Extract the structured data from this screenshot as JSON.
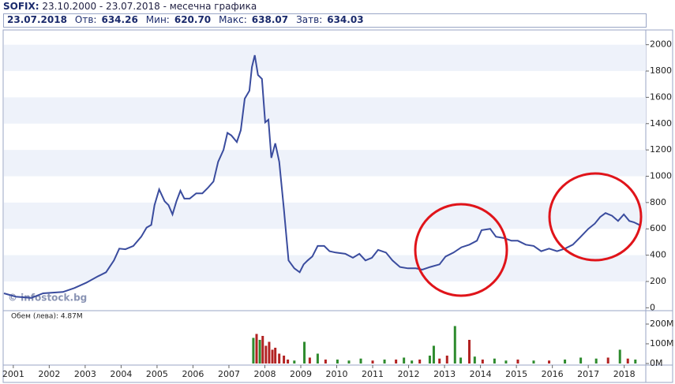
{
  "header": {
    "title": "SOFIX:",
    "subtitle": "23.10.2000 - 23.07.2018 - месечна графика"
  },
  "info": {
    "date": "23.07.2018",
    "stats": [
      {
        "label": "Отв:",
        "value": "634.26"
      },
      {
        "label": "Мин:",
        "value": "620.70"
      },
      {
        "label": "Макс:",
        "value": "638.07"
      },
      {
        "label": "Затв:",
        "value": "634.03"
      }
    ]
  },
  "watermark": "© infostock.bg",
  "chart_data": [
    {
      "type": "line",
      "color": "#3a4c9e",
      "grid": true,
      "xlim": [
        2000.74,
        2018.6
      ],
      "ylim": [
        -10,
        2100
      ],
      "yticks": [
        0,
        200,
        400,
        600,
        800,
        1000,
        1200,
        1400,
        1600,
        1800,
        2000
      ],
      "xticks": [
        2001,
        2002,
        2003,
        2004,
        2005,
        2006,
        2007,
        2008,
        2009,
        2010,
        2011,
        2012,
        2013,
        2014,
        2015,
        2016,
        2017,
        2018
      ],
      "x": [
        2000.74,
        2001.07,
        2001.5,
        2001.83,
        2002.38,
        2002.7,
        2003.03,
        2003.36,
        2003.58,
        2003.8,
        2003.95,
        2004.12,
        2004.34,
        2004.56,
        2004.71,
        2004.84,
        2004.93,
        2005.06,
        2005.21,
        2005.32,
        2005.43,
        2005.54,
        2005.65,
        2005.76,
        2005.91,
        2006.09,
        2006.26,
        2006.41,
        2006.57,
        2006.7,
        2006.85,
        2006.96,
        2007.07,
        2007.22,
        2007.33,
        2007.44,
        2007.57,
        2007.64,
        2007.72,
        2007.81,
        2007.92,
        2008.01,
        2008.1,
        2008.18,
        2008.29,
        2008.4,
        2008.53,
        2008.66,
        2008.82,
        2008.97,
        2009.08,
        2009.19,
        2009.32,
        2009.47,
        2009.65,
        2009.8,
        2009.97,
        2010.24,
        2010.45,
        2010.63,
        2010.8,
        2010.98,
        2011.15,
        2011.37,
        2011.55,
        2011.76,
        2011.98,
        2012.2,
        2012.38,
        2012.6,
        2012.86,
        2013.03,
        2013.25,
        2013.47,
        2013.69,
        2013.9,
        2014.03,
        2014.27,
        2014.43,
        2014.65,
        2014.86,
        2015.04,
        2015.26,
        2015.48,
        2015.69,
        2015.91,
        2016.13,
        2016.35,
        2016.57,
        2016.79,
        2017.0,
        2017.18,
        2017.33,
        2017.48,
        2017.66,
        2017.83,
        2017.99,
        2018.14,
        2018.27,
        2018.42
      ],
      "values": [
        110,
        85,
        75,
        110,
        120,
        150,
        190,
        240,
        270,
        360,
        450,
        445,
        470,
        540,
        610,
        630,
        780,
        900,
        810,
        780,
        710,
        810,
        890,
        830,
        830,
        870,
        870,
        910,
        960,
        1110,
        1200,
        1330,
        1310,
        1260,
        1350,
        1590,
        1650,
        1830,
        1920,
        1770,
        1740,
        1410,
        1430,
        1140,
        1250,
        1110,
        750,
        360,
        300,
        270,
        330,
        360,
        390,
        470,
        470,
        430,
        420,
        410,
        380,
        410,
        360,
        380,
        440,
        420,
        360,
        310,
        300,
        300,
        290,
        310,
        330,
        390,
        420,
        460,
        480,
        510,
        590,
        600,
        540,
        530,
        510,
        510,
        480,
        470,
        430,
        450,
        430,
        450,
        480,
        540,
        600,
        640,
        690,
        720,
        700,
        660,
        710,
        660,
        650,
        630
      ]
    },
    {
      "type": "bar",
      "title": "Обем (лева): 4.87M",
      "xlim": [
        2000.74,
        2018.6
      ],
      "ylim": [
        -8,
        264
      ],
      "yticks": [
        {
          "value": 0,
          "label": "0M"
        },
        {
          "value": 100,
          "label": "100M"
        },
        {
          "value": 200,
          "label": "200M"
        }
      ],
      "x": [
        2007.68,
        2007.77,
        2007.86,
        2007.94,
        2008.03,
        2008.12,
        2008.21,
        2008.29,
        2008.4,
        2008.53,
        2008.64,
        2008.82,
        2009.1,
        2009.25,
        2009.47,
        2009.69,
        2010.02,
        2010.34,
        2010.67,
        2011.0,
        2011.33,
        2011.65,
        2011.87,
        2012.09,
        2012.31,
        2012.59,
        2012.7,
        2012.86,
        2013.07,
        2013.29,
        2013.45,
        2013.69,
        2013.84,
        2014.06,
        2014.39,
        2014.71,
        2015.04,
        2015.48,
        2015.91,
        2016.35,
        2016.79,
        2017.22,
        2017.55,
        2017.88,
        2018.1,
        2018.31
      ],
      "values": [
        130,
        150,
        120,
        140,
        90,
        110,
        70,
        80,
        50,
        40,
        20,
        15,
        110,
        30,
        50,
        20,
        20,
        15,
        25,
        15,
        20,
        20,
        30,
        15,
        20,
        40,
        90,
        25,
        40,
        190,
        30,
        120,
        35,
        20,
        25,
        15,
        20,
        15,
        15,
        20,
        30,
        25,
        30,
        70,
        25,
        20
      ],
      "colors": [
        "#2e8b2e",
        "#b22222",
        "#2e8b2e",
        "#b22222",
        "#b22222",
        "#b22222",
        "#b22222",
        "#b22222",
        "#b22222",
        "#b22222",
        "#b22222",
        "#2e8b2e",
        "#2e8b2e",
        "#b22222",
        "#2e8b2e",
        "#b22222",
        "#2e8b2e",
        "#2e8b2e",
        "#2e8b2e",
        "#b22222",
        "#2e8b2e",
        "#b22222",
        "#2e8b2e",
        "#2e8b2e",
        "#b22222",
        "#2e8b2e",
        "#2e8b2e",
        "#b22222",
        "#b22222",
        "#2e8b2e",
        "#2e8b2e",
        "#b22222",
        "#2e8b2e",
        "#b22222",
        "#2e8b2e",
        "#2e8b2e",
        "#b22222",
        "#2e8b2e",
        "#b22222",
        "#2e8b2e",
        "#2e8b2e",
        "#2e8b2e",
        "#b22222",
        "#2e8b2e",
        "#b22222",
        "#2e8b2e"
      ]
    }
  ]
}
